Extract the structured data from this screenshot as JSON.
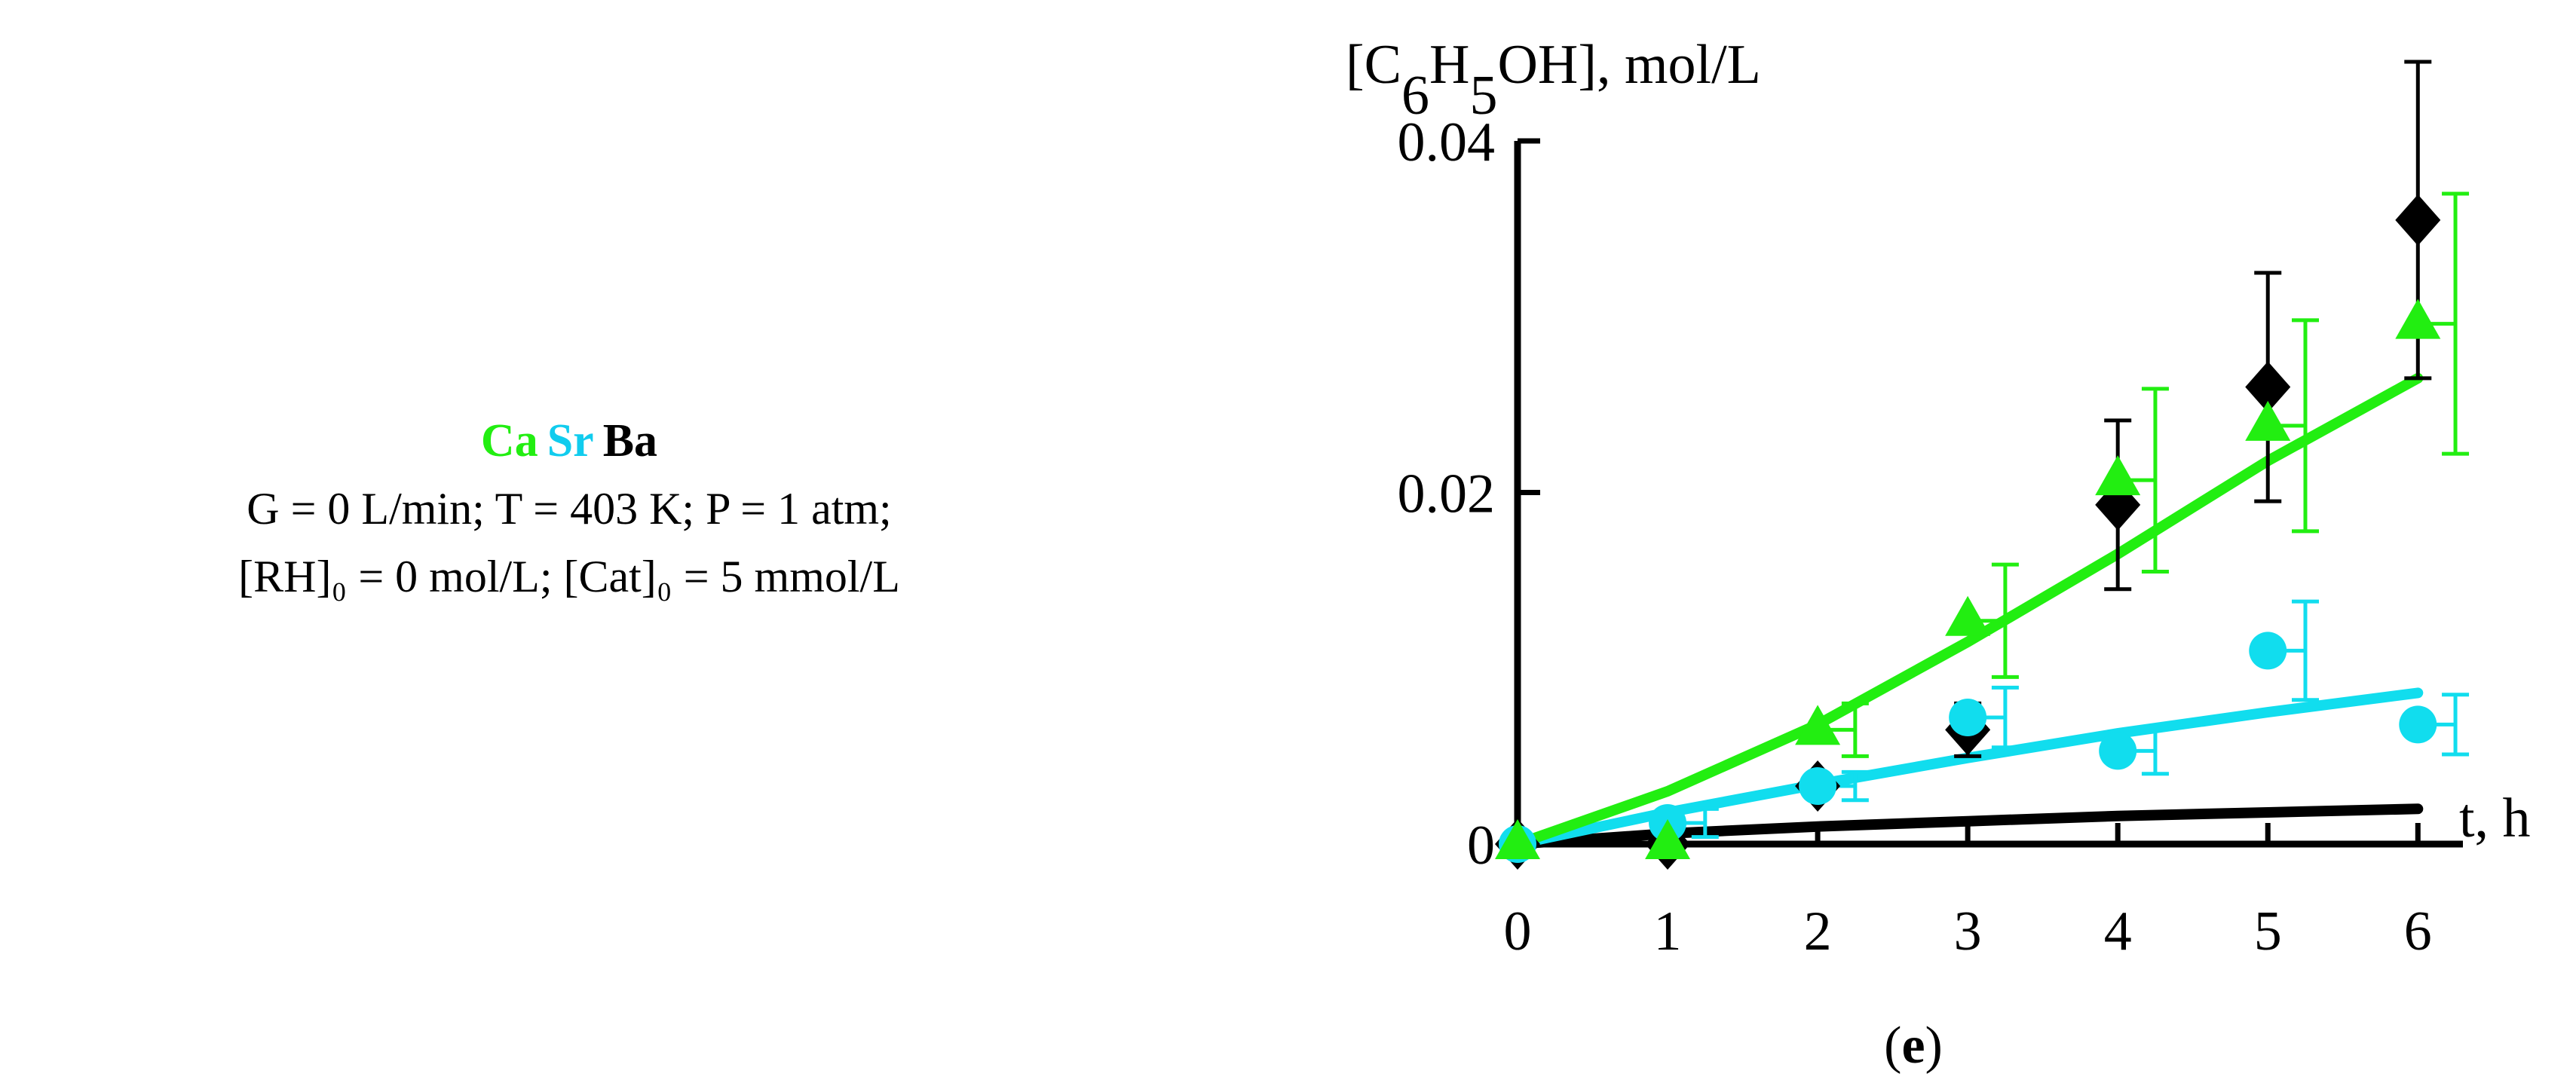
{
  "legend": {
    "series": [
      {
        "name": "Ca",
        "color": "#22ee11"
      },
      {
        "name": "Sr",
        "color": "#11ccee"
      },
      {
        "name": "Ba",
        "color": "#000000"
      }
    ],
    "conditions_line1": "G = 0 L/min; T = 403 K; P = 1 atm;",
    "conditions_line2": "[RH]₀ = 0 mol/L; [Cat]₀ = 5 mmol/L"
  },
  "chart_data": {
    "type": "scatter",
    "ylabel": "[C6H5OH], mol/L",
    "xlabel": "t, h",
    "panel_label": "(e)",
    "xlim": [
      0,
      6.3
    ],
    "ylim": [
      0,
      0.04
    ],
    "x_ticks": [
      "0",
      "1",
      "2",
      "3",
      "4",
      "5",
      "6"
    ],
    "y_ticks": [
      {
        "value": 0,
        "label": "0"
      },
      {
        "value": 0.02,
        "label": "0.02"
      },
      {
        "value": 0.04,
        "label": "0.04"
      }
    ],
    "series": [
      {
        "name": "Ba",
        "color": "#000000",
        "marker": "diamond",
        "points": [
          {
            "x": 0,
            "y": 0
          },
          {
            "x": 1,
            "y": 0
          },
          {
            "x": 2,
            "y": 0.0033
          },
          {
            "x": 3,
            "y": 0.0065,
            "err": 0.0015
          },
          {
            "x": 4,
            "y": 0.0193,
            "err": 0.0048
          },
          {
            "x": 5,
            "y": 0.026,
            "err": 0.0065
          },
          {
            "x": 6,
            "y": 0.0355,
            "err": 0.009
          }
        ],
        "fit": [
          [
            0,
            0
          ],
          [
            1,
            0.0006
          ],
          [
            2,
            0.001
          ],
          [
            3,
            0.0013
          ],
          [
            4,
            0.0016
          ],
          [
            5,
            0.0018
          ],
          [
            6,
            0.002
          ]
        ]
      },
      {
        "name": "Sr",
        "color": "#11ddee",
        "marker": "circle",
        "points": [
          {
            "x": 0,
            "y": 0
          },
          {
            "x": 1,
            "y": 0.0012,
            "err": 0.0008,
            "err_x": 0.25
          },
          {
            "x": 2,
            "y": 0.0033,
            "err": 0.0008,
            "err_x": 0.25
          },
          {
            "x": 3,
            "y": 0.0072,
            "err": 0.0017,
            "err_x": 0.25
          },
          {
            "x": 4,
            "y": 0.0053,
            "err": 0.0013,
            "err_x": 0.25
          },
          {
            "x": 5,
            "y": 0.011,
            "err": 0.0028,
            "err_x": 0.25
          },
          {
            "x": 6,
            "y": 0.0068,
            "err": 0.0017,
            "err_x": 0.25
          }
        ],
        "fit": [
          [
            0,
            0
          ],
          [
            1,
            0.0018
          ],
          [
            2,
            0.0034
          ],
          [
            3,
            0.0049
          ],
          [
            4,
            0.0063
          ],
          [
            5,
            0.0075
          ],
          [
            6,
            0.0086
          ]
        ]
      },
      {
        "name": "Ca",
        "color": "#22ee11",
        "marker": "triangle",
        "points": [
          {
            "x": 0,
            "y": 0
          },
          {
            "x": 1,
            "y": 0
          },
          {
            "x": 2,
            "y": 0.0065,
            "err": 0.0015,
            "err_x": 0.25
          },
          {
            "x": 3,
            "y": 0.0127,
            "err": 0.0032,
            "err_x": 0.25
          },
          {
            "x": 4,
            "y": 0.0207,
            "err": 0.0052,
            "err_x": 0.25
          },
          {
            "x": 5,
            "y": 0.0238,
            "err": 0.006,
            "err_x": 0.25
          },
          {
            "x": 6,
            "y": 0.0296,
            "err": 0.0074,
            "err_x": 0.25
          }
        ],
        "fit": [
          [
            0,
            0
          ],
          [
            1,
            0.003
          ],
          [
            2,
            0.0068
          ],
          [
            3,
            0.0115
          ],
          [
            4,
            0.0165
          ],
          [
            5,
            0.0218
          ],
          [
            6,
            0.0265
          ]
        ]
      }
    ]
  }
}
